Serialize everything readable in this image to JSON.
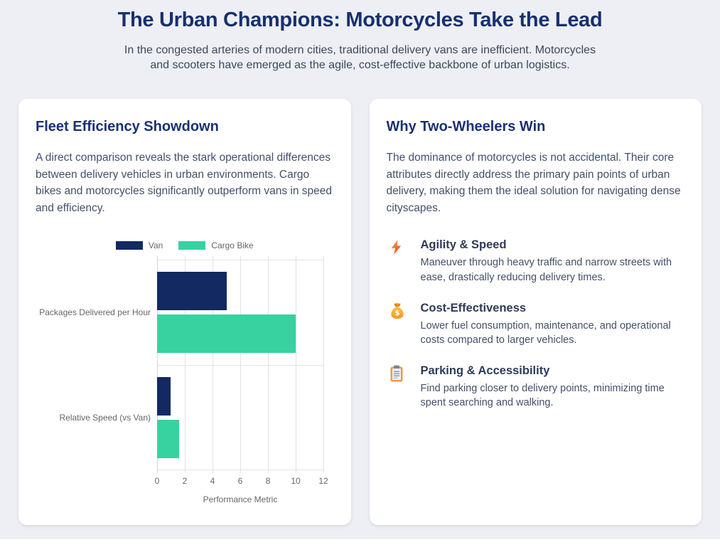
{
  "page": {
    "title": "The Urban Champions: Motorcycles Take the Lead",
    "subtitle": "In the congested arteries of modern cities, traditional delivery vans are inefficient. Motorcycles and scooters have emerged as the agile, cost-effective backbone of urban logistics."
  },
  "left_card": {
    "title": "Fleet Efficiency Showdown",
    "description": "A direct comparison reveals the stark operational differences between delivery vehicles in urban environments. Cargo bikes and motorcycles significantly outperform vans in speed and efficiency."
  },
  "right_card": {
    "title": "Why Two-Wheelers Win",
    "description": "The dominance of motorcycles is not accidental. Their core attributes directly address the primary pain points of urban delivery, making them the ideal solution for navigating dense cityscapes.",
    "features": [
      {
        "icon": "lightning-icon",
        "title": "Agility & Speed",
        "description": "Maneuver through heavy traffic and narrow streets with ease, drastically reducing delivery times."
      },
      {
        "icon": "money-bag-icon",
        "title": "Cost-Effectiveness",
        "description": "Lower fuel consumption, maintenance, and operational costs compared to larger vehicles."
      },
      {
        "icon": "clipboard-icon",
        "title": "Parking & Accessibility",
        "description": "Find parking closer to delivery points, minimizing time spent searching and walking."
      }
    ]
  },
  "chart_data": {
    "type": "bar",
    "orientation": "horizontal",
    "title": "",
    "categories": [
      "Packages Delivered per Hour",
      "Relative Speed (vs Van)"
    ],
    "series": [
      {
        "name": "Van",
        "color": "#122a61",
        "values": [
          5,
          1
        ]
      },
      {
        "name": "Cargo Bike",
        "color": "#37d2a0",
        "values": [
          10,
          1.6
        ]
      }
    ],
    "xlabel": "Performance Metric",
    "ylabel": "",
    "xlim": [
      0,
      12
    ],
    "xticks": [
      0,
      2,
      4,
      6,
      8,
      10,
      12
    ],
    "legend_position": "top",
    "grid": true
  },
  "theme": {
    "heading_color": "#17306f",
    "page_background": "#edeff4",
    "card_background": "#ffffff",
    "chart_text_color": "#666666",
    "icon_orange": "#f4711f"
  }
}
